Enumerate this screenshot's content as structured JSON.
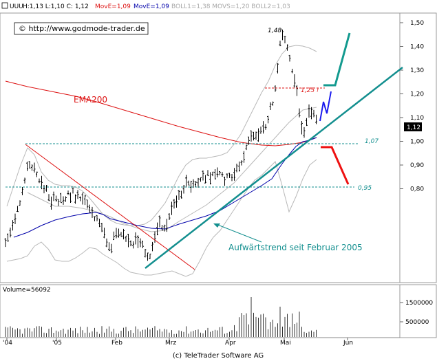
{
  "header": {
    "ticker": "UUU",
    "hlc": "H:1,13  L:1,10  C: 1,12",
    "move_a": "MovE=1,09",
    "move_b": "MovE=1,09",
    "boll": "BOLL1=1,38  MOVS=1,20  BOLL2=1,03"
  },
  "copyright": "© http://www.godmode-trader.de",
  "footer": "(c) TeleTrader Software AG",
  "volume_label": "Volume=56092",
  "annotations": {
    "ema200": "EMA200",
    "trend": "Aufwärtstrend seit Februar 2005",
    "peak": "1,48",
    "level_125": "1,25 !",
    "level_107": "1,07",
    "level_095": "0,95",
    "last_price": "1,12"
  },
  "colors": {
    "ema200": "#dd1111",
    "ma_blue": "#0000aa",
    "bollinger": "#b0b0b0",
    "trendline": "#138f8f",
    "scenario_up": "#139a8f",
    "scenario_blue": "#1a1aee",
    "scenario_down": "#ee1111",
    "support_line": "#138f8f",
    "resistance_line": "#dd1111"
  },
  "chart_data": [
    {
      "type": "line",
      "y_ticks": [
        "1,50",
        "1,40",
        "1,30",
        "1,20",
        "1,10",
        "1,00",
        "0,90",
        "0,80"
      ],
      "ylim": [
        0.75,
        1.55
      ],
      "x_ticks": [
        "'04",
        "'05",
        "Feb",
        "Mrz",
        "Apr",
        "Mai",
        "Jun"
      ],
      "series": [
        {
          "name": "EMA200",
          "x": [
            "'04",
            "'05",
            "Feb",
            "Mrz",
            "Apr",
            "Mai"
          ],
          "values": [
            1.28,
            1.24,
            1.19,
            1.14,
            1.09,
            1.08
          ]
        }
      ],
      "price_path": {
        "x": [
          "'04",
          "'05",
          "Feb",
          "Mrz",
          "Apr",
          "Mai"
        ],
        "values": [
          0.8,
          0.91,
          0.84,
          0.79,
          1.03,
          1.44
        ]
      },
      "last": 1.12,
      "peak": 1.48,
      "horizontal_levels": [
        1.25,
        1.07,
        0.95
      ]
    },
    {
      "type": "bar",
      "y_ticks": [
        "1500000",
        "500000"
      ],
      "last_volume": 56092
    }
  ]
}
